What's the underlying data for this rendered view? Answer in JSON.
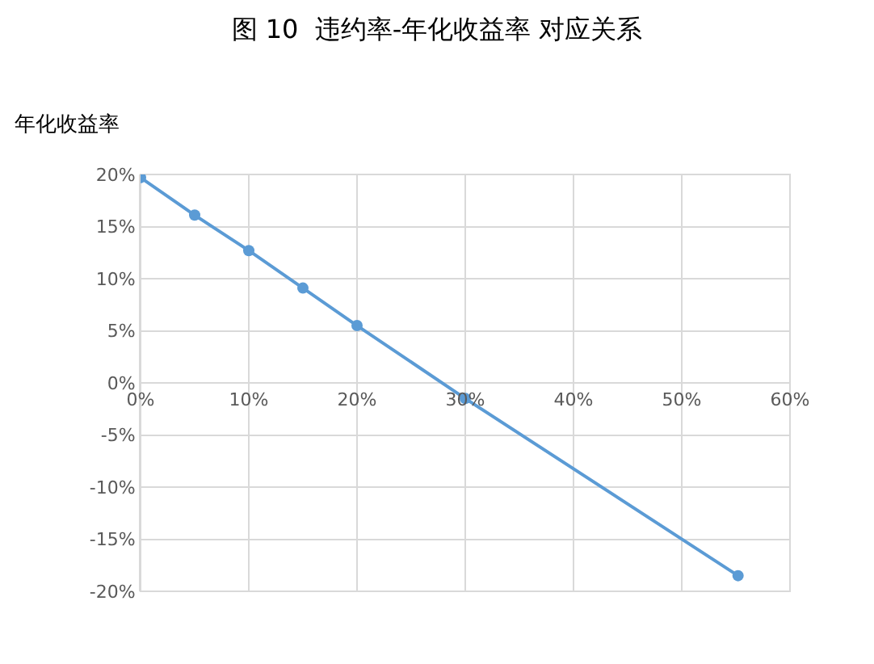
{
  "chart_data": {
    "type": "line",
    "title": "图 10  违约率-年化收益率 对应关系",
    "ylabel": "年化收益率",
    "x": [
      0,
      5,
      10,
      15,
      20,
      30,
      55.2
    ],
    "series": [
      {
        "color": "#5b9bd5",
        "values": [
          19.7,
          16.1,
          12.7,
          9.1,
          5.5,
          -1.5,
          -18.5
        ]
      }
    ],
    "xlim": [
      0,
      60
    ],
    "xticks": [
      {
        "value": 0,
        "label": "0%"
      },
      {
        "value": 10,
        "label": "10%"
      },
      {
        "value": 20,
        "label": "20%"
      },
      {
        "value": 30,
        "label": "30%"
      },
      {
        "value": 40,
        "label": "40%"
      },
      {
        "value": 50,
        "label": "50%"
      },
      {
        "value": 60,
        "label": "60%"
      }
    ],
    "ylim": [
      -20,
      20
    ],
    "yticks": [
      {
        "value": -20,
        "label": "-20%"
      },
      {
        "value": -15,
        "label": "-15%"
      },
      {
        "value": -10,
        "label": "-10%"
      },
      {
        "value": -5,
        "label": "-5%"
      },
      {
        "value": 0,
        "label": "0%"
      },
      {
        "value": 5,
        "label": "5%"
      },
      {
        "value": 10,
        "label": "10%"
      },
      {
        "value": 15,
        "label": "15%"
      },
      {
        "value": 20,
        "label": "20%"
      }
    ],
    "grid": true,
    "marker": "circle",
    "line_style": "solid",
    "legend": false
  }
}
